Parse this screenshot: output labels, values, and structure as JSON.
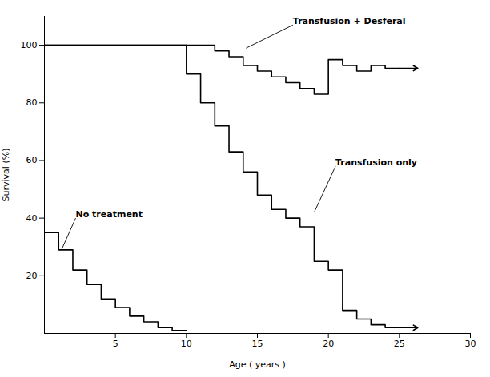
{
  "chart_data": {
    "type": "line",
    "xlabel": "Age ( years )",
    "ylabel": "Survival (%)",
    "xlim": [
      0,
      30
    ],
    "ylim": [
      0,
      110
    ],
    "xticks": [
      5,
      10,
      15,
      20,
      25,
      30
    ],
    "yticks": [
      20,
      40,
      60,
      80,
      100
    ],
    "series": [
      {
        "x": [
          0,
          1,
          1,
          2,
          2,
          3,
          3,
          4,
          4,
          5,
          5,
          6,
          6,
          7,
          7,
          8,
          8,
          9,
          9,
          10
        ],
        "values": [
          35,
          35,
          29,
          29,
          22,
          22,
          17,
          17,
          12,
          12,
          9,
          9,
          6,
          6,
          4,
          4,
          2,
          2,
          1,
          1
        ]
      },
      {
        "x": [
          0,
          10,
          10,
          11,
          11,
          12,
          12,
          13,
          13,
          14,
          14,
          15,
          15,
          16,
          16,
          17,
          17,
          18,
          18,
          19,
          19,
          20,
          20,
          21,
          21,
          22,
          22,
          23,
          23,
          24,
          24,
          25
        ],
        "values": [
          100,
          100,
          90,
          90,
          80,
          80,
          72,
          72,
          63,
          63,
          56,
          56,
          48,
          48,
          43,
          43,
          40,
          40,
          37,
          37,
          25,
          25,
          22,
          22,
          8,
          8,
          5,
          5,
          3,
          3,
          2,
          2
        ]
      },
      {
        "x": [
          0,
          12,
          12,
          13,
          13,
          14,
          14,
          15,
          15,
          16,
          16,
          17,
          17,
          18,
          18,
          19,
          19,
          20,
          20,
          21,
          21,
          22,
          22,
          23,
          23,
          24,
          24,
          25
        ],
        "values": [
          100,
          100,
          98,
          98,
          96,
          96,
          93,
          93,
          91,
          91,
          89,
          89,
          87,
          87,
          85,
          85,
          83,
          83,
          95,
          95,
          93,
          93,
          91,
          91,
          93,
          93,
          92,
          92
        ]
      }
    ],
    "arrows": [
      {
        "xy": [
          26.3,
          2
        ],
        "xytext": [
          25.0,
          2
        ]
      },
      {
        "xy": [
          26.3,
          92
        ],
        "xytext": [
          25.0,
          92
        ]
      }
    ],
    "annotations": [
      {
        "text": "No treatment",
        "xy": [
          1.2,
          29
        ],
        "xytext": [
          2.2,
          40
        ]
      },
      {
        "text": "Transfusion only",
        "xy": [
          19.0,
          42
        ],
        "xytext": [
          20.5,
          58
        ]
      },
      {
        "text": "Transfusion + Desferal",
        "xy": [
          14.2,
          99
        ],
        "xytext": [
          17.5,
          107
        ]
      }
    ]
  }
}
